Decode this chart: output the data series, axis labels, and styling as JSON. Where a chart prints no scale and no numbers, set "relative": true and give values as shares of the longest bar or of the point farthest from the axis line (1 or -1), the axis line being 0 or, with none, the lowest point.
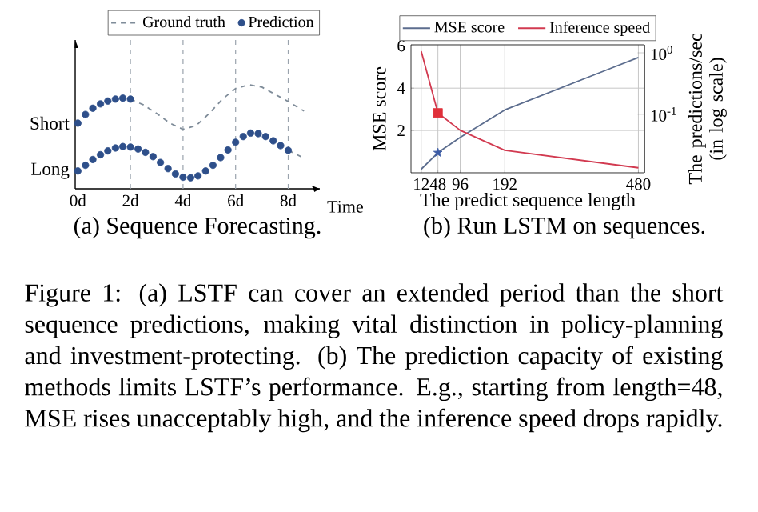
{
  "chart_data": [
    {
      "type": "line",
      "title": "(a) Sequence Forecasting.",
      "xlabel": "Time",
      "xlim": [
        -0.1,
        9.2
      ],
      "xticks": [
        {
          "value": 0,
          "label": "0d"
        },
        {
          "value": 2,
          "label": "2d"
        },
        {
          "value": 4,
          "label": "4d"
        },
        {
          "value": 6,
          "label": "6d"
        },
        {
          "value": 8,
          "label": "8d"
        }
      ],
      "relative": true,
      "annotations": [
        {
          "text": "Short",
          "x": 0,
          "y": 0.631
        },
        {
          "text": "Long",
          "x": 0,
          "y": 0.171
        }
      ],
      "legend": "top right",
      "ref_lines": [
        {
          "axis": "x",
          "value": 2,
          "color": "#9aa3ad",
          "line_style": "dashed"
        },
        {
          "axis": "x",
          "value": 4,
          "color": "#9aa3ad",
          "line_style": "dashed"
        },
        {
          "axis": "x",
          "value": 6,
          "color": "#9aa3ad",
          "line_style": "dashed"
        },
        {
          "axis": "x",
          "value": 8,
          "color": "#9aa3ad",
          "line_style": "dashed"
        }
      ],
      "series": [
        {
          "name": "Ground truth",
          "type": "line",
          "line_style": "dashed",
          "marker": "none",
          "color": "#7f8c99",
          "x": [
            2,
            2.5,
            3,
            3.5,
            4,
            4.5,
            5,
            5.5,
            6,
            6.5,
            7,
            7.5,
            8,
            8.6
          ],
          "values": [
            0.862,
            0.806,
            0.724,
            0.631,
            0.571,
            0.608,
            0.724,
            0.862,
            0.963,
            1.0,
            0.977,
            0.908,
            0.839,
            0.747
          ]
        },
        {
          "type": "line",
          "line_style": "dashed",
          "marker": "none",
          "color": "#7f8c99",
          "x": [
            8.0,
            8.6
          ],
          "values": [
            0.369,
            0.295
          ]
        },
        {
          "name": "Prediction",
          "type": "scatter",
          "marker": "circle",
          "color": "#2e4f8a",
          "x": [
            0,
            0.29,
            0.57,
            0.86,
            1.14,
            1.43,
            1.71,
            2.0,
            0,
            0.29,
            0.57,
            0.86,
            1.14,
            1.43,
            1.71,
            2.0,
            2.29,
            2.57,
            2.86,
            3.14,
            3.43,
            3.71,
            4.0,
            4.29,
            4.57,
            4.86,
            5.14,
            5.43,
            5.71,
            6.0,
            6.29,
            6.57,
            6.86,
            7.14,
            7.43,
            7.71,
            8.0
          ],
          "values": [
            0.631,
            0.714,
            0.774,
            0.816,
            0.843,
            0.862,
            0.871,
            0.862,
            0.171,
            0.226,
            0.281,
            0.327,
            0.364,
            0.392,
            0.406,
            0.401,
            0.382,
            0.35,
            0.309,
            0.253,
            0.194,
            0.143,
            0.111,
            0.106,
            0.124,
            0.171,
            0.226,
            0.3,
            0.373,
            0.447,
            0.502,
            0.535,
            0.53,
            0.502,
            0.461,
            0.415,
            0.369
          ]
        }
      ]
    },
    {
      "type": "line",
      "title": "(b) Run LSTM on sequences.",
      "xlabel": "The predict sequence length",
      "ylabel": "MSE score",
      "y2label": "The predictions/sec (in log scale)",
      "xlim": [
        -10,
        493
      ],
      "xticks": [
        12,
        48,
        96,
        192,
        480
      ],
      "ylim": [
        0,
        6.05
      ],
      "yticks": [
        2,
        4,
        6
      ],
      "y2lim": [
        0.0112,
        1.35
      ],
      "y2ticks": [
        {
          "value": 0.1,
          "label": "10$^{-1}$"
        },
        {
          "value": 1,
          "label": "10$^{0}$"
        }
      ],
      "log": "y2",
      "grid": true,
      "legend": "top",
      "series": [
        {
          "name": "MSE score",
          "type": "line",
          "marker": "none",
          "color": "#5c6d8e",
          "x": [
            12,
            48,
            96,
            192,
            480
          ],
          "values": [
            0.17,
            0.95,
            1.67,
            2.97,
            5.45
          ]
        },
        {
          "name": "Inference speed",
          "type": "line",
          "marker": "none",
          "axis": "y2",
          "color": "#d23a50",
          "x": [
            12,
            48,
            96,
            192,
            480
          ],
          "values": [
            1.06,
            0.105,
            0.055,
            0.026,
            0.0135
          ]
        },
        {
          "type": "scatter",
          "marker": "star",
          "color": "#3b5ba5",
          "x": [
            48
          ],
          "values": [
            0.95
          ]
        },
        {
          "type": "scatter",
          "marker": "square",
          "axis": "y2",
          "color": "#e0303a",
          "x": [
            48
          ],
          "values": [
            0.105
          ]
        }
      ]
    },
    {
      "type": "other",
      "annotations": [
        "Figure 1: (a) LSTF can cover an extended period than the short sequence predictions, making vital distinction in policy-planning and investment-protecting. (b) The prediction capacity of existing methods limits LSTF’s performance. E.g., starting from length=48, MSE rises unacceptably high, and the inference speed drops rapidly."
      ]
    }
  ]
}
